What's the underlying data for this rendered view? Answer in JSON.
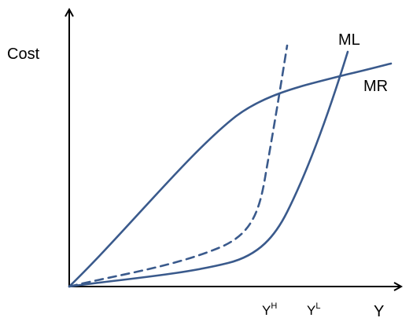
{
  "chart_data": {
    "type": "line",
    "ylabel": "Cost",
    "xlabel": "Y",
    "x_ticks": [
      {
        "base": "Y",
        "sup": "H"
      },
      {
        "base": "Y",
        "sup": "L"
      }
    ],
    "series": [
      {
        "name": "MR",
        "style": "solid"
      },
      {
        "name": "ML",
        "style": "solid"
      },
      {
        "name": "",
        "style": "dashed"
      }
    ],
    "grid": false,
    "colors": {
      "curve": "#3a5a8c",
      "axis": "#000000"
    }
  }
}
